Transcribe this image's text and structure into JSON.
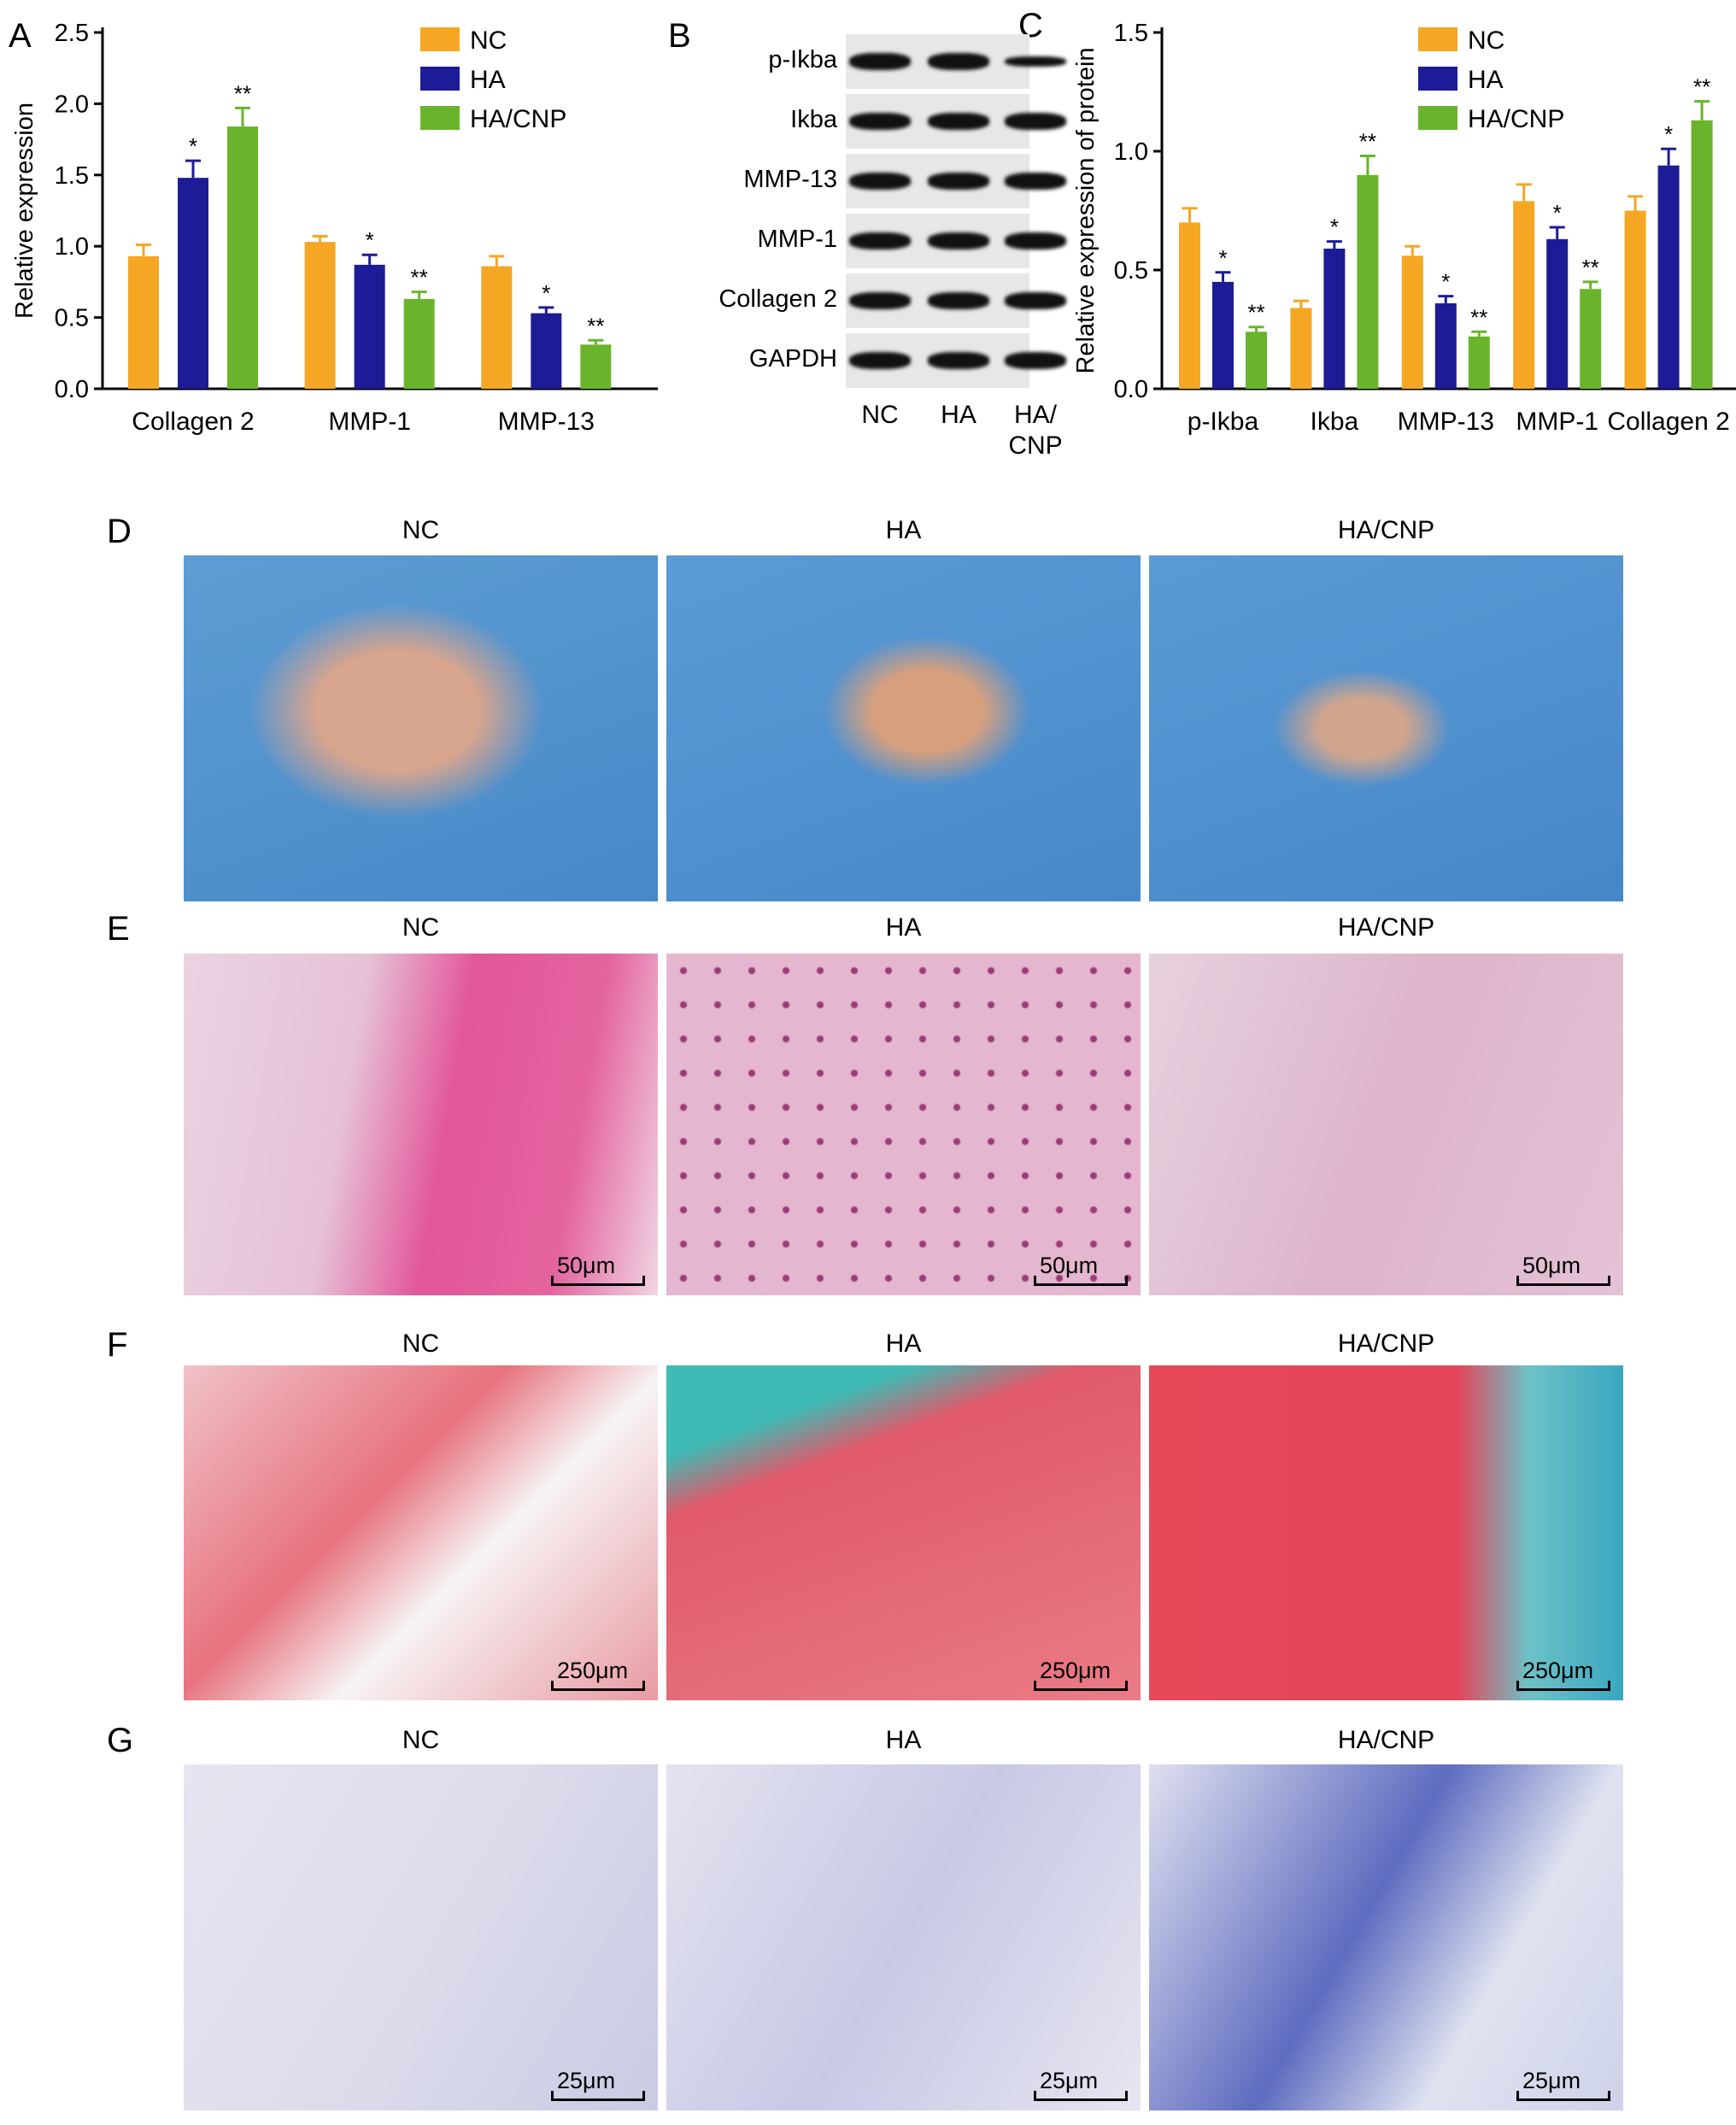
{
  "panels": {
    "A": "A",
    "B": "B",
    "C": "C",
    "D": "D",
    "E": "E",
    "F": "F",
    "G": "G"
  },
  "colors": {
    "NC": "#f5a623",
    "HA": "#1c1c96",
    "HA_CNP": "#6ab42d"
  },
  "chart_data": [
    {
      "type": "bar",
      "panel": "A",
      "ylabel": "Relative expression",
      "ylim": [
        0,
        2.5
      ],
      "yticks": [
        "0.0",
        "0.5",
        "1.0",
        "1.5",
        "2.0",
        "2.5"
      ],
      "categories": [
        "Collagen 2",
        "MMP-1",
        "MMP-13"
      ],
      "series": [
        {
          "name": "NC",
          "values": [
            0.93,
            1.03,
            0.86
          ],
          "errors": [
            0.08,
            0.04,
            0.07
          ]
        },
        {
          "name": "HA",
          "values": [
            1.48,
            0.87,
            0.53
          ],
          "errors": [
            0.12,
            0.07,
            0.04
          ]
        },
        {
          "name": "HA/CNP",
          "values": [
            1.84,
            0.63,
            0.31
          ],
          "errors": [
            0.13,
            0.05,
            0.03
          ]
        }
      ],
      "annotations": [
        [
          "",
          "*",
          "**"
        ],
        [
          "",
          "*",
          "**"
        ],
        [
          "",
          "*",
          "**"
        ]
      ],
      "legend": "top-right"
    },
    {
      "type": "bar",
      "panel": "C",
      "ylabel": "Relative expression of protein",
      "ylim": [
        0,
        1.5
      ],
      "yticks": [
        "0.0",
        "0.5",
        "1.0",
        "1.5"
      ],
      "categories": [
        "p-Ikba",
        "Ikba",
        "MMP-13",
        "MMP-1",
        "Collagen 2"
      ],
      "series": [
        {
          "name": "NC",
          "values": [
            0.7,
            0.34,
            0.56,
            0.79,
            0.75
          ],
          "errors": [
            0.06,
            0.03,
            0.04,
            0.07,
            0.06
          ]
        },
        {
          "name": "HA",
          "values": [
            0.45,
            0.59,
            0.36,
            0.63,
            0.94
          ],
          "errors": [
            0.04,
            0.03,
            0.03,
            0.05,
            0.07
          ]
        },
        {
          "name": "HA/CNP",
          "values": [
            0.24,
            0.9,
            0.22,
            0.42,
            1.13
          ],
          "errors": [
            0.02,
            0.08,
            0.02,
            0.03,
            0.08
          ]
        }
      ],
      "annotations": [
        [
          "",
          "*",
          "**"
        ],
        [
          "",
          "*",
          "**"
        ],
        [
          "",
          "*",
          "**"
        ],
        [
          "",
          "*",
          "**"
        ],
        [
          "",
          "*",
          "**"
        ]
      ],
      "legend": "top-right"
    }
  ],
  "western_blot": {
    "proteins": [
      "p-Ikba",
      "Ikba",
      "MMP-13",
      "MMP-1",
      "Collagen 2",
      "GAPDH"
    ],
    "lanes": [
      "NC",
      "HA",
      "HA/\nCNP"
    ]
  },
  "groups": [
    "NC",
    "HA",
    "HA/CNP"
  ],
  "scalebars": {
    "E": "50μm",
    "F": "250μm",
    "G": "25μm"
  }
}
